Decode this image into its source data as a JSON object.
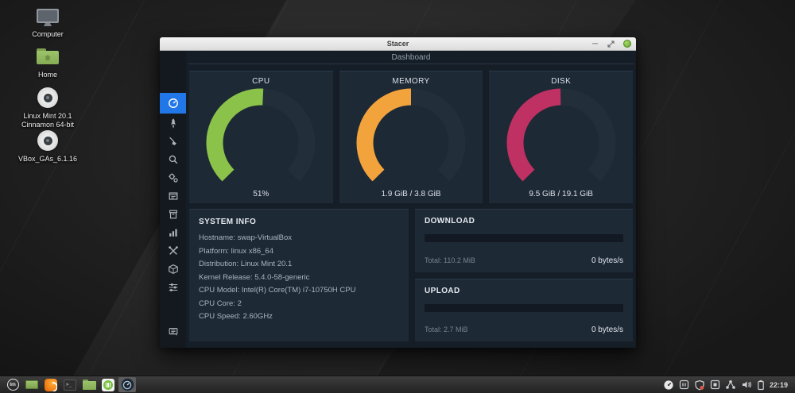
{
  "colors": {
    "accent_blue": "#2277e8",
    "cpu_green": "#8bc34a",
    "memory_orange": "#f2a33c",
    "disk_pink": "#bf3063",
    "gauge_track": "#232e3b",
    "card_bg": "#1e2936",
    "content_bg": "#151d27",
    "sidebar_bg": "#14191f",
    "mint_green": "#87b158"
  },
  "desktop_icons": [
    {
      "name": "computer",
      "label": "Computer"
    },
    {
      "name": "home",
      "label": "Home"
    },
    {
      "name": "mint-iso",
      "label_line1": "Linux Mint 20.1",
      "label_line2": "Cinnamon 64-bit"
    },
    {
      "name": "vbox-additions",
      "label": "VBox_GAs_6.1.16"
    }
  ],
  "window": {
    "title": "Stacer",
    "header": "Dashboard"
  },
  "sidebar": {
    "items": [
      {
        "name": "dashboard",
        "active": true
      },
      {
        "name": "startup-apps",
        "active": false
      },
      {
        "name": "system-cleaner",
        "active": false
      },
      {
        "name": "search",
        "active": false
      },
      {
        "name": "services",
        "active": false
      },
      {
        "name": "processes",
        "active": false
      },
      {
        "name": "uninstaller",
        "active": false
      },
      {
        "name": "resources",
        "active": false
      },
      {
        "name": "helpers",
        "active": false
      },
      {
        "name": "apt-repository-manager",
        "active": false
      },
      {
        "name": "settings",
        "active": false
      }
    ],
    "bottom_item": "feedback"
  },
  "gauges": [
    {
      "title": "CPU",
      "value_label": "51%",
      "percent": 51,
      "color": "#8bc34a"
    },
    {
      "title": "MEMORY",
      "value_label": "1.9 GiB / 3.8 GiB",
      "percent": 50,
      "color": "#f2a33c"
    },
    {
      "title": "DISK",
      "value_label": "9.5 GiB / 19.1 GiB",
      "percent": 49.7,
      "color": "#bf3063"
    }
  ],
  "gauge_track_color": "#232e3b",
  "system_info": {
    "title": "SYSTEM INFO",
    "rows": [
      "Hostname: swap-VirtualBox",
      "Platform: linux x86_64",
      "Distribution: Linux Mint 20.1",
      "Kernel Release: 5.4.0-58-generic",
      "CPU Model: Intel(R) Core(TM) i7-10750H CPU",
      "CPU Core: 2",
      "CPU Speed: 2.60GHz"
    ]
  },
  "network_cards": [
    {
      "title": "DOWNLOAD",
      "total_label": "Total: 110.2 MiB",
      "rate": "0 bytes/s",
      "percent": 0
    },
    {
      "title": "UPLOAD",
      "total_label": "Total: 2.7 MiB",
      "rate": "0 bytes/s",
      "percent": 0
    }
  ],
  "taskbar": {
    "apps": [
      "mint-menu",
      "show-desktop",
      "firefox",
      "terminal",
      "files",
      "software-manager",
      "stacer"
    ],
    "active_app": "stacer",
    "tray": [
      "stacer-tray",
      "keyboard-indicator",
      "update-manager",
      "removable-media",
      "network",
      "volume",
      "battery"
    ],
    "clock": "22:19"
  }
}
